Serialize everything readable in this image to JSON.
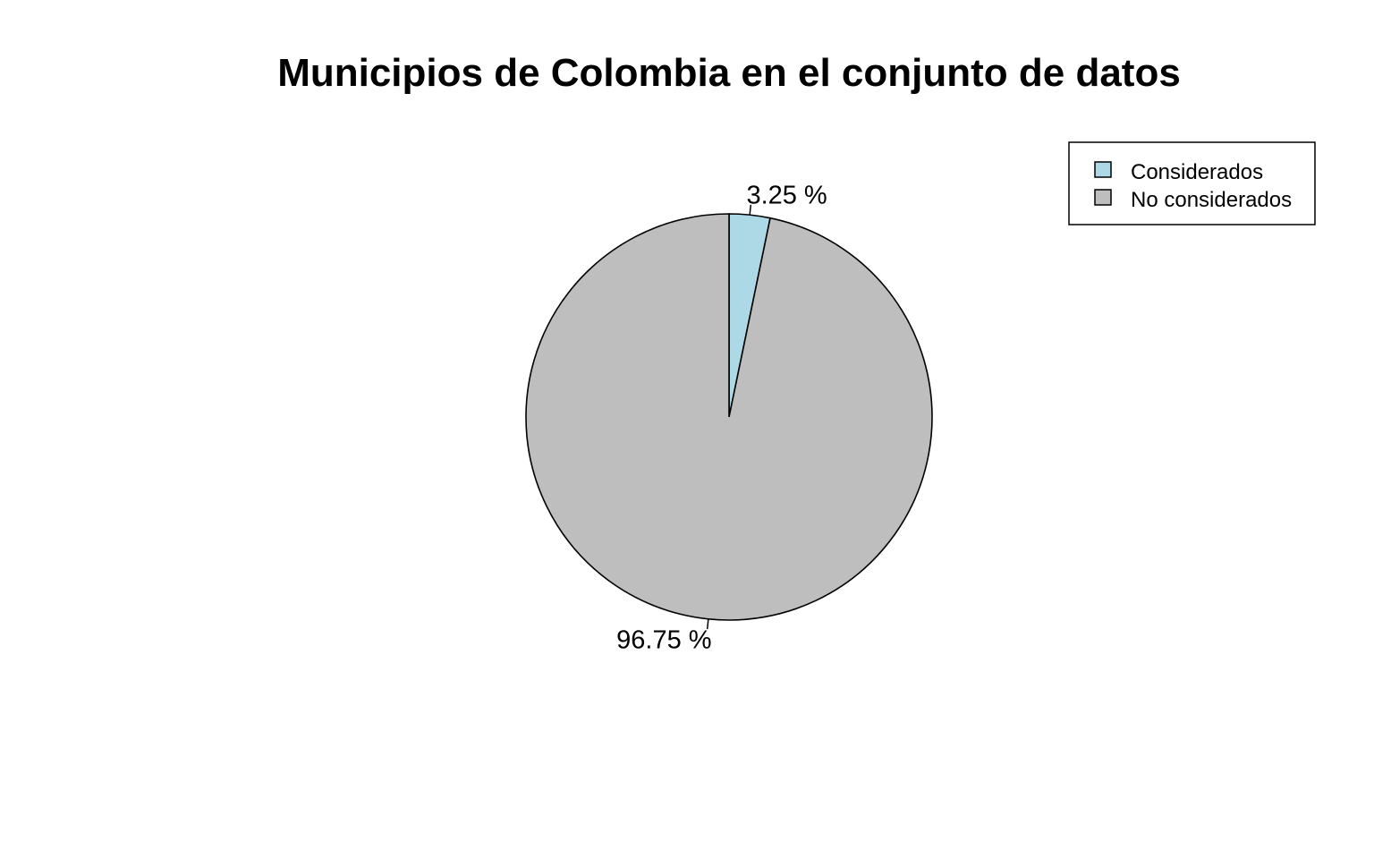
{
  "chart_data": {
    "type": "pie",
    "title": "Municipios de Colombia en el conjunto de datos",
    "categories": [
      "Considerados",
      "No considerados"
    ],
    "values": [
      3.25,
      96.75
    ],
    "labels": [
      "3.25 %",
      "96.75 %"
    ],
    "colors": [
      "#add8e6",
      "#bebebe"
    ],
    "start_angle_deg": 90,
    "direction": "clockwise",
    "legend": {
      "position": "top-right",
      "entries": [
        "Considerados",
        "No considerados"
      ]
    }
  }
}
